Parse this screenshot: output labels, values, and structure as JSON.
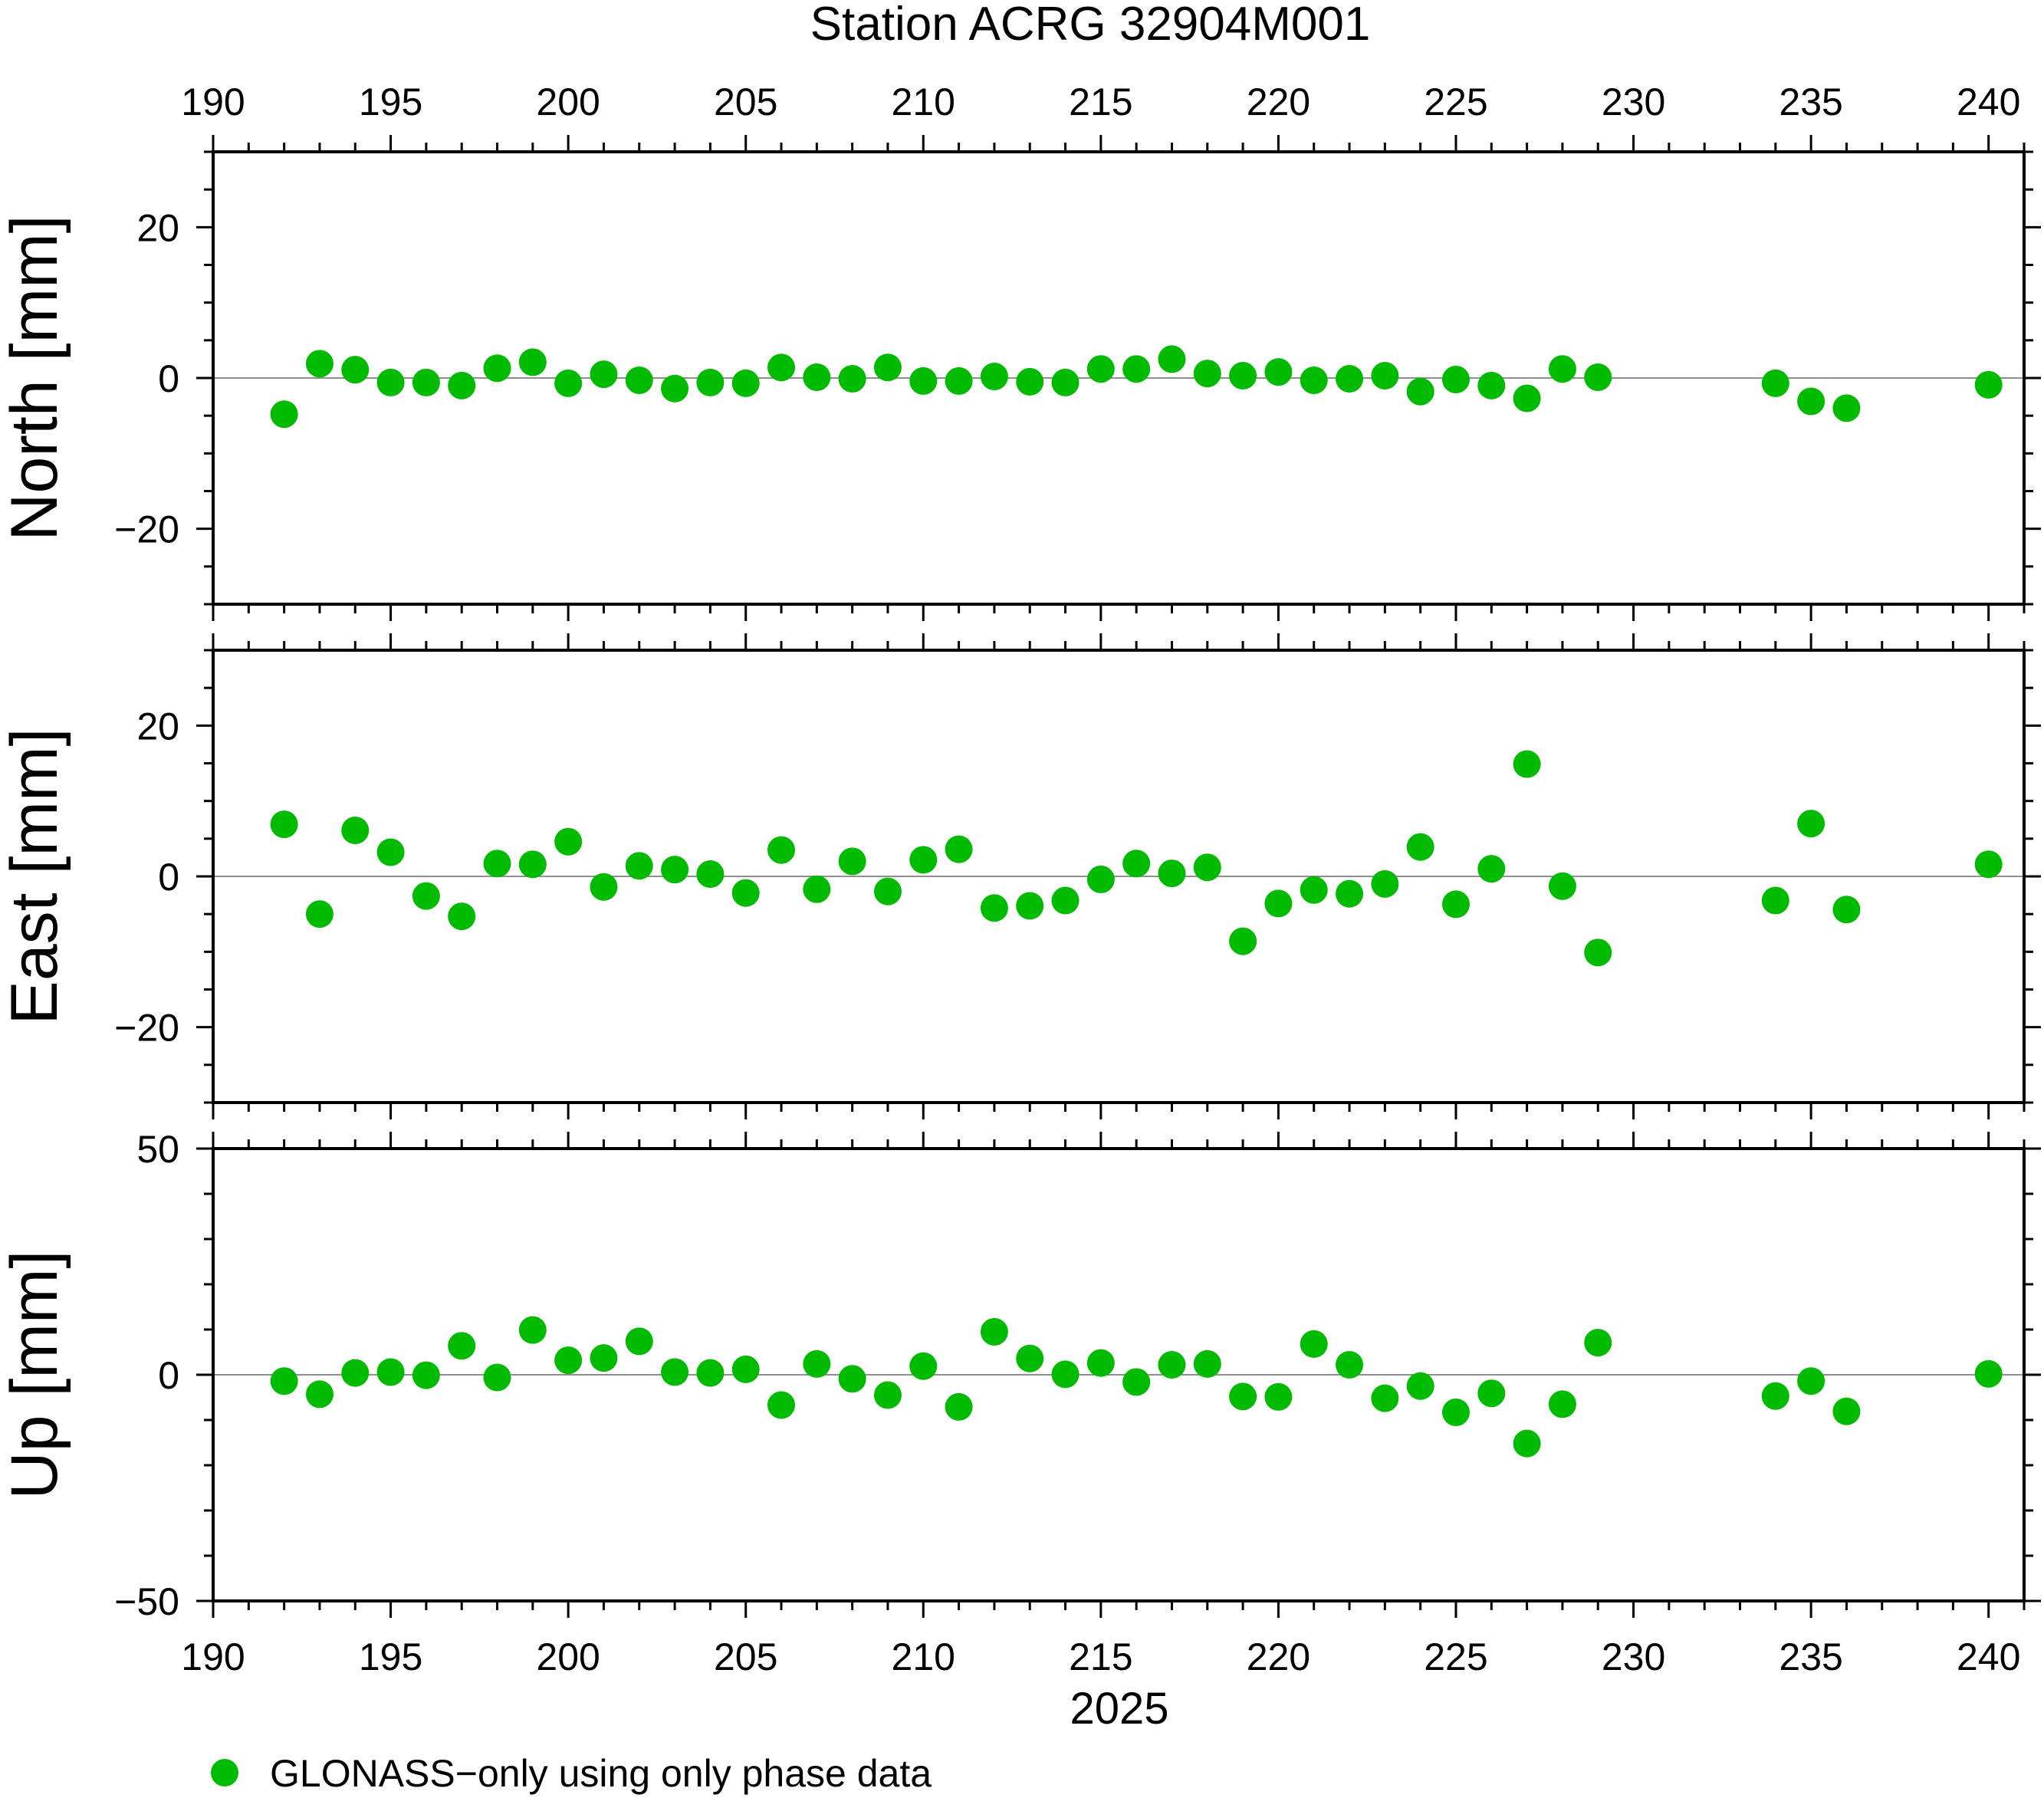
{
  "chart_data": {
    "type": "scatter",
    "title": "Station ACRG 32904M001",
    "xlabel": "2025",
    "x_ticks": [
      "190",
      "195",
      "200",
      "205",
      "210",
      "215",
      "220",
      "225",
      "230",
      "235",
      "240"
    ],
    "xlim": [
      190,
      241
    ],
    "grid": false,
    "legend_position": "bottom-left",
    "marker_color": "#00bb00",
    "series_name": "GLONASS−only using only phase data",
    "panels": [
      {
        "ylabel": "North [mm]",
        "ylim": [
          -30,
          30
        ],
        "y_ticks": [
          "20",
          "0",
          "−20"
        ],
        "points": [
          [
            192,
            -4.8
          ],
          [
            193,
            1.9
          ],
          [
            194,
            1.1
          ],
          [
            195,
            -0.6
          ],
          [
            196,
            -0.6
          ],
          [
            197,
            -1.0
          ],
          [
            198,
            1.3
          ],
          [
            199,
            2.1
          ],
          [
            200,
            -0.7
          ],
          [
            201,
            0.5
          ],
          [
            202,
            -0.3
          ],
          [
            203,
            -1.4
          ],
          [
            204,
            -0.6
          ],
          [
            205,
            -0.7
          ],
          [
            206,
            1.4
          ],
          [
            207,
            0.1
          ],
          [
            208,
            -0.1
          ],
          [
            209,
            1.4
          ],
          [
            210,
            -0.4
          ],
          [
            211,
            -0.4
          ],
          [
            212,
            0.2
          ],
          [
            213,
            -0.5
          ],
          [
            214,
            -0.6
          ],
          [
            215,
            1.2
          ],
          [
            216,
            1.2
          ],
          [
            217,
            2.5
          ],
          [
            218,
            0.6
          ],
          [
            219,
            0.3
          ],
          [
            220,
            0.8
          ],
          [
            221,
            -0.3
          ],
          [
            222,
            -0.1
          ],
          [
            223,
            0.3
          ],
          [
            224,
            -1.8
          ],
          [
            225,
            -0.2
          ],
          [
            226,
            -1.0
          ],
          [
            227,
            -2.7
          ],
          [
            228,
            1.2
          ],
          [
            229,
            0.1
          ],
          [
            234,
            -0.7
          ],
          [
            235,
            -3.1
          ],
          [
            236,
            -4.0
          ],
          [
            240,
            -0.9
          ]
        ]
      },
      {
        "ylabel": "East [mm]",
        "ylim": [
          -30,
          30
        ],
        "y_ticks": [
          "20",
          "0",
          "−20"
        ],
        "points": [
          [
            192,
            6.9
          ],
          [
            193,
            -5.0
          ],
          [
            194,
            6.1
          ],
          [
            195,
            3.2
          ],
          [
            196,
            -2.6
          ],
          [
            197,
            -5.3
          ],
          [
            198,
            1.7
          ],
          [
            199,
            1.6
          ],
          [
            200,
            4.6
          ],
          [
            201,
            -1.4
          ],
          [
            202,
            1.4
          ],
          [
            203,
            0.9
          ],
          [
            204,
            0.3
          ],
          [
            205,
            -2.2
          ],
          [
            206,
            3.5
          ],
          [
            207,
            -1.7
          ],
          [
            208,
            2.0
          ],
          [
            209,
            -2.0
          ],
          [
            210,
            2.2
          ],
          [
            211,
            3.6
          ],
          [
            212,
            -4.2
          ],
          [
            213,
            -3.9
          ],
          [
            214,
            -3.2
          ],
          [
            215,
            -0.4
          ],
          [
            216,
            1.7
          ],
          [
            217,
            0.4
          ],
          [
            218,
            1.2
          ],
          [
            219,
            -8.6
          ],
          [
            220,
            -3.6
          ],
          [
            221,
            -1.8
          ],
          [
            222,
            -2.3
          ],
          [
            223,
            -1.0
          ],
          [
            224,
            3.9
          ],
          [
            225,
            -3.7
          ],
          [
            226,
            1.0
          ],
          [
            227,
            14.9
          ],
          [
            228,
            -1.3
          ],
          [
            229,
            -10.1
          ],
          [
            234,
            -3.2
          ],
          [
            235,
            7.0
          ],
          [
            236,
            -4.4
          ],
          [
            240,
            1.6
          ]
        ]
      },
      {
        "ylabel": "Up [mm]",
        "ylim": [
          -50,
          50
        ],
        "y_ticks": [
          "50",
          "0",
          "−50"
        ],
        "points": [
          [
            192,
            -1.4
          ],
          [
            193,
            -4.3
          ],
          [
            194,
            0.4
          ],
          [
            195,
            0.6
          ],
          [
            196,
            -0.1
          ],
          [
            197,
            6.4
          ],
          [
            198,
            -0.6
          ],
          [
            199,
            9.9
          ],
          [
            200,
            3.2
          ],
          [
            201,
            3.7
          ],
          [
            202,
            7.4
          ],
          [
            203,
            0.6
          ],
          [
            204,
            0.4
          ],
          [
            205,
            1.2
          ],
          [
            206,
            -6.7
          ],
          [
            207,
            2.4
          ],
          [
            208,
            -0.9
          ],
          [
            209,
            -4.5
          ],
          [
            210,
            1.9
          ],
          [
            211,
            -7.1
          ],
          [
            212,
            9.5
          ],
          [
            213,
            3.6
          ],
          [
            214,
            0.1
          ],
          [
            215,
            2.6
          ],
          [
            216,
            -1.6
          ],
          [
            217,
            2.2
          ],
          [
            218,
            2.4
          ],
          [
            219,
            -4.8
          ],
          [
            220,
            -4.9
          ],
          [
            221,
            6.8
          ],
          [
            222,
            2.2
          ],
          [
            223,
            -5.2
          ],
          [
            224,
            -2.5
          ],
          [
            225,
            -8.3
          ],
          [
            226,
            -4.1
          ],
          [
            227,
            -15.2
          ],
          [
            228,
            -6.5
          ],
          [
            229,
            7.1
          ],
          [
            234,
            -4.7
          ],
          [
            235,
            -1.4
          ],
          [
            236,
            -8.1
          ],
          [
            240,
            0.2
          ]
        ]
      }
    ]
  }
}
